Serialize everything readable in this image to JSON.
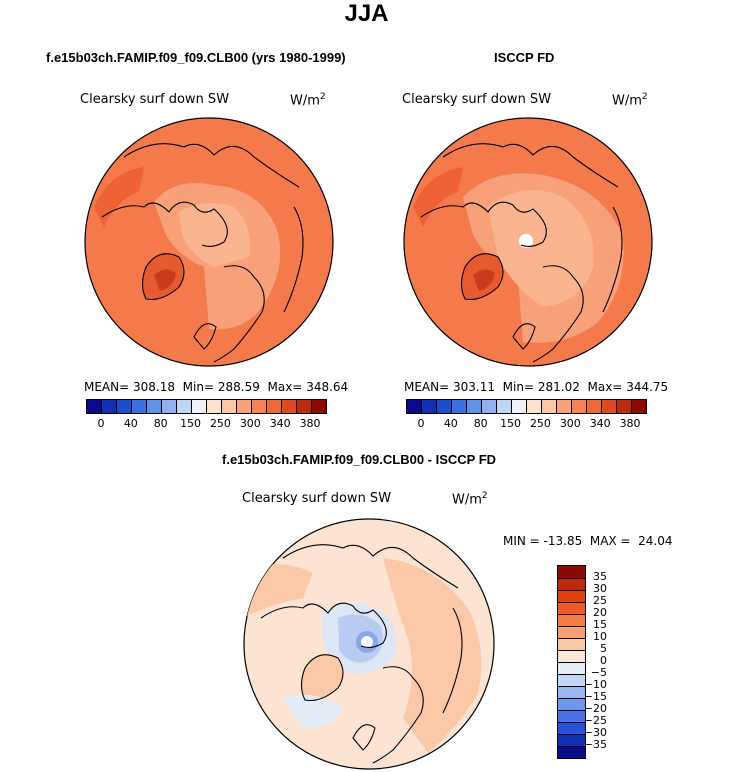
{
  "title": "JJA",
  "left_panel": {
    "title": "f.e15b03ch.FAMIP.f09_f09.CLB00 (yrs 1980-1999)",
    "variable": "Clearsky surf down SW",
    "units": "W/m",
    "units_exp": "2",
    "mean_label": "MEAN=",
    "mean": "308.18",
    "min_label": "Min=",
    "min": "288.59",
    "max_label": "Max=",
    "max": "348.64"
  },
  "right_panel": {
    "title": "ISCCP FD",
    "variable": "Clearsky surf down SW",
    "units": "W/m",
    "units_exp": "2",
    "mean_label": "MEAN=",
    "mean": "303.11",
    "min_label": "Min=",
    "min": "281.02",
    "max_label": "Max=",
    "max": "344.75"
  },
  "diff_panel": {
    "title": "f.e15b03ch.FAMIP.f09_f09.CLB00 - ISCCP FD",
    "variable": "Clearsky surf down SW",
    "units": "W/m",
    "units_exp": "2",
    "minmax": "MIN = -13.85  MAX =  24.04"
  },
  "colorbar_top": {
    "colors": [
      "#0a0a8c",
      "#1230b0",
      "#1a50d0",
      "#3a70e0",
      "#6090e8",
      "#90b0f0",
      "#c0d4f4",
      "#eef2f6",
      "#fce2d0",
      "#fac8a8",
      "#f8a47a",
      "#f48456",
      "#ee6838",
      "#e04a20",
      "#bc2a10",
      "#8c0c04"
    ],
    "labels": [
      "0",
      "40",
      "80",
      "150",
      "250",
      "300",
      "340",
      "380"
    ]
  },
  "colorbar_diff": {
    "colors": [
      "#8c0a04",
      "#c02a0c",
      "#e04010",
      "#f05a24",
      "#f57a44",
      "#f8a074",
      "#fbc8a4",
      "#fde8d8",
      "#e8eef8",
      "#c4d6f6",
      "#9ab8f0",
      "#7098ec",
      "#4872e6",
      "#2850d8",
      "#1230b4",
      "#0a0a8c"
    ],
    "labels": [
      "35",
      "30",
      "25",
      "20",
      "15",
      "10",
      "5",
      "0",
      "−5",
      "−10",
      "−15",
      "−20",
      "−25",
      "−30",
      "−35"
    ]
  },
  "map_colors": {
    "base": "#f47a4c",
    "light": "#f8a07a",
    "lighter": "#fac0a0",
    "dark": "#ee6236",
    "darker": "#dc4a24",
    "diff_base": "#fde4d2",
    "diff_warm": "#fbc8a8",
    "diff_cool": "#dce6f6",
    "diff_blue": "#b8ccf2"
  }
}
